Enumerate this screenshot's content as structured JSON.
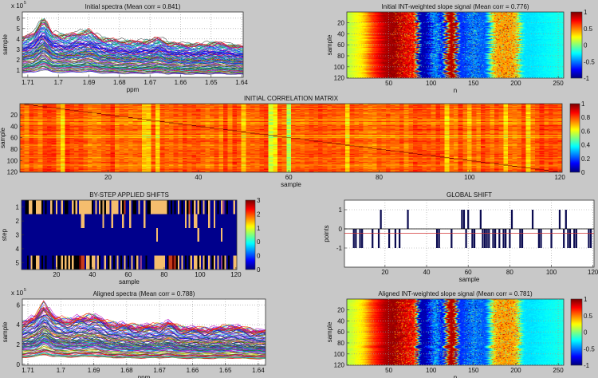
{
  "colors": {
    "figure_bg": "#c8c8c8",
    "axes_bg": "#ffffff",
    "grid": "#9a9a9a",
    "mean_line": "#d03030",
    "bar": "#0a0a50",
    "line_cycle": [
      "#0000ff",
      "#008000",
      "#ff0000",
      "#00bfbf",
      "#bf00bf",
      "#bfbf00",
      "#404040",
      "#7f3fbf",
      "#3f7fff"
    ]
  },
  "chart_data": [
    {
      "type": "line",
      "title": "Initial spectra (Mean corr = 0.841)",
      "xlabel": "ppm",
      "ylabel": "sample",
      "exponent_base": "x 10",
      "exponent_power": "5",
      "xlim": [
        1.7118,
        1.6395
      ],
      "ylim": [
        0.3,
        6.6
      ],
      "xticks": [
        1.71,
        1.7,
        1.69,
        1.68,
        1.67,
        1.66,
        1.65,
        1.64
      ],
      "yticks": [
        1,
        2,
        3,
        4,
        5,
        6
      ],
      "n_series": 120,
      "level_range": [
        0.8,
        5.0
      ],
      "base_profile": {
        "ppm": [
          1.7118,
          1.708,
          1.705,
          1.702,
          1.698,
          1.694,
          1.69,
          1.686,
          1.68,
          1.676,
          1.67,
          1.667,
          1.664,
          1.655,
          1.648,
          1.64
        ],
        "rel": [
          0.85,
          0.95,
          1.25,
          0.95,
          0.9,
          0.95,
          1.0,
          0.85,
          0.8,
          0.78,
          0.8,
          0.86,
          0.75,
          0.72,
          0.76,
          0.68
        ]
      }
    },
    {
      "type": "heatmap",
      "title": "Initial INT-weighted slope signal (Mean corr = 0.776)",
      "xlabel": "n",
      "ylabel": "sample",
      "xlim": [
        0.5,
        256.5
      ],
      "ylim": [
        120.5,
        0.5
      ],
      "xticks": [
        50,
        100,
        150,
        200,
        250
      ],
      "yticks": [
        20,
        40,
        60,
        80,
        100,
        120
      ],
      "colorbar": {
        "range": [
          -1,
          1
        ],
        "ticks": [
          1,
          0.5,
          0,
          -0.5,
          -1
        ]
      },
      "profile": {
        "n": [
          1,
          20,
          30,
          45,
          55,
          70,
          82,
          86,
          95,
          105,
          115,
          120,
          128,
          132,
          150,
          165,
          175,
          190,
          200,
          208,
          220,
          256
        ],
        "value": [
          0.1,
          0.3,
          0.6,
          0.9,
          0.95,
          0.8,
          0.7,
          -0.9,
          -0.9,
          -0.4,
          -0.8,
          0.9,
          0.9,
          -0.7,
          -0.5,
          -0.6,
          0.4,
          0.45,
          0.4,
          -0.3,
          -0.3,
          -0.2
        ]
      },
      "noisy_ranges": [
        [
          55,
          82
        ],
        [
          95,
          112
        ],
        [
          140,
          160
        ],
        [
          172,
          205
        ]
      ]
    },
    {
      "type": "heatmap",
      "title": "INITIAL CORRELATION MATRIX",
      "xlabel": "sample",
      "ylabel": "sample",
      "xlim": [
        0.5,
        120.5
      ],
      "ylim": [
        120.5,
        0.5
      ],
      "xticks": [
        20,
        40,
        60,
        80,
        100,
        120
      ],
      "yticks": [
        20,
        40,
        60,
        80,
        100,
        120
      ],
      "colorbar": {
        "range": [
          0,
          1
        ],
        "ticks": [
          1,
          0.8,
          0.6,
          0.4,
          0.2,
          0
        ]
      },
      "typical_corr": 0.8,
      "low_columns": {
        "sample": [
          10,
          28,
          29,
          31,
          50,
          56,
          57,
          60,
          73,
          95,
          100,
          108,
          113
        ],
        "corr": [
          0.6,
          0.62,
          0.6,
          0.6,
          0.62,
          0.45,
          0.55,
          0.4,
          0.6,
          0.6,
          0.65,
          0.6,
          0.6
        ]
      },
      "low_rows": {
        "sample": [
          33,
          34,
          35,
          36,
          37
        ],
        "corr": [
          0.65,
          0.65,
          0.65,
          0.65,
          0.65
        ]
      }
    },
    {
      "type": "heatmap",
      "title": "BY-STEP APPLIED SHIFTS",
      "xlabel": "sample",
      "ylabel": "step",
      "xlim": [
        0.5,
        120.5
      ],
      "ylim": [
        5.5,
        0.5
      ],
      "xticks": [
        20,
        40,
        60,
        80,
        100,
        120
      ],
      "yticks": [
        1,
        2,
        3,
        4,
        5
      ],
      "colorbar": {
        "range": [
          0,
          3
        ],
        "tick_labels": [
          "3",
          "2",
          "1",
          "0",
          "0",
          "0"
        ]
      },
      "cell_colors": {
        "0": "#00008c",
        "1": "#f5bd6e",
        "2": "#c83a1a",
        "3": "#5a0000",
        "4": "#8a3a8a",
        "5": "#000000"
      },
      "steps": [
        {
          "step": 1,
          "value1": [
            5,
            6,
            9,
            10,
            11,
            17,
            20,
            23,
            29,
            31,
            33,
            34,
            35,
            36,
            37,
            38,
            39,
            42,
            44,
            46,
            48,
            49,
            51,
            52,
            53,
            54,
            56,
            61,
            66,
            69,
            73,
            74,
            75,
            76,
            77,
            78,
            79,
            80,
            81,
            88,
            92,
            97,
            99,
            102,
            105,
            108,
            112,
            119
          ],
          "value2": [
            58,
            94
          ],
          "value4": [
            113
          ],
          "value5": [
            3,
            4,
            7,
            8,
            12,
            14,
            18,
            25,
            26,
            30,
            40,
            45,
            47,
            57,
            63,
            64,
            71,
            72,
            82,
            84,
            86,
            90,
            93,
            96,
            100,
            104,
            110,
            115
          ]
        },
        {
          "step": 2,
          "value1": [
            34,
            35,
            46,
            51,
            57,
            61,
            69,
            92,
            94,
            97,
            98,
            105,
            108
          ],
          "value2": [],
          "value4": [],
          "value5": []
        },
        {
          "step": 3,
          "value1": [
            76,
            99,
            112
          ],
          "value2": [],
          "value4": [],
          "value5": []
        },
        {
          "step": 4,
          "value1": [],
          "value2": [],
          "value4": [],
          "value5": []
        },
        {
          "step": 5,
          "value1": [
            6,
            9,
            10,
            20,
            23,
            25,
            27,
            29,
            37,
            38,
            40,
            41,
            43,
            47,
            50,
            54,
            58,
            62,
            65,
            75,
            76,
            77,
            78,
            79,
            80,
            88,
            90,
            95,
            97,
            98,
            100,
            102,
            105,
            108,
            110,
            114,
            119,
            120
          ],
          "value2": [
            34,
            35,
            83,
            84,
            86
          ],
          "value3": [
            33,
            85
          ],
          "value4": [
            67,
            112
          ],
          "value5": [
            4,
            7,
            8,
            12,
            14,
            18,
            21,
            22,
            24,
            26,
            28,
            30,
            31,
            32,
            39,
            44,
            49,
            52,
            56,
            60,
            64,
            70,
            82,
            87,
            92,
            94,
            99,
            103,
            107,
            113,
            116
          ]
        }
      ]
    },
    {
      "type": "bar",
      "title": "GLOBAL SHIFT",
      "xlabel": "sample",
      "ylabel": "points",
      "xlim": [
        0.5,
        120.5
      ],
      "ylim": [
        -2,
        1.5
      ],
      "xticks": [
        20,
        40,
        60,
        80,
        100,
        120
      ],
      "yticks": [
        1,
        0,
        -1
      ],
      "minus_one_samples": [
        5,
        6,
        8,
        9,
        14,
        17,
        22,
        25,
        27,
        45,
        46,
        52,
        59,
        62,
        63,
        67,
        68,
        69,
        70,
        72,
        73,
        75,
        77,
        78,
        80,
        85,
        86,
        94,
        95,
        100,
        106,
        108,
        109,
        111,
        112,
        118,
        119
      ],
      "plus_one_samples": [
        18,
        31,
        57,
        58,
        60,
        66,
        81,
        91,
        104,
        107
      ]
    },
    {
      "type": "line",
      "title": "Aligned spectra (Mean corr = 0.788)",
      "xlabel": "ppm",
      "ylabel": "sample",
      "exponent_base": "x 10",
      "exponent_power": "5",
      "xlim": [
        1.7117,
        1.6378
      ],
      "ylim": [
        -0.1,
        6.6
      ],
      "xticks": [
        1.71,
        1.7,
        1.69,
        1.68,
        1.67,
        1.66,
        1.65,
        1.64
      ],
      "yticks": [
        0,
        2,
        4,
        6
      ],
      "n_series": 120,
      "level_range": [
        0.8,
        5.0
      ],
      "base_profile": {
        "ppm": [
          1.7117,
          1.708,
          1.705,
          1.702,
          1.698,
          1.694,
          1.69,
          1.686,
          1.68,
          1.676,
          1.67,
          1.667,
          1.664,
          1.655,
          1.648,
          1.64
        ],
        "rel": [
          0.85,
          0.95,
          1.25,
          0.95,
          0.9,
          0.95,
          1.0,
          0.85,
          0.8,
          0.78,
          0.8,
          0.86,
          0.75,
          0.72,
          0.78,
          0.68
        ]
      }
    },
    {
      "type": "heatmap",
      "title": "Aligned INT-weighted slope signal (Mean corr = 0.781)",
      "xlabel": "n",
      "ylabel": "sample",
      "xlim": [
        0.5,
        256.5
      ],
      "ylim": [
        120.5,
        0.5
      ],
      "xticks": [
        50,
        100,
        150,
        200,
        250
      ],
      "yticks": [
        20,
        40,
        60,
        80,
        100,
        120
      ],
      "colorbar": {
        "range": [
          -1,
          1
        ],
        "ticks": [
          1,
          0.5,
          0,
          -0.5,
          -1
        ]
      },
      "profile": {
        "n": [
          1,
          20,
          30,
          45,
          55,
          70,
          82,
          86,
          95,
          105,
          115,
          120,
          128,
          132,
          150,
          165,
          175,
          190,
          200,
          208,
          220,
          256
        ],
        "value": [
          0.1,
          0.3,
          0.6,
          0.9,
          0.95,
          0.8,
          0.7,
          -0.9,
          -0.9,
          -0.4,
          -0.8,
          0.9,
          0.9,
          -0.7,
          -0.5,
          -0.6,
          0.4,
          0.45,
          0.4,
          -0.3,
          -0.3,
          -0.2
        ]
      },
      "noisy_ranges": [
        [
          55,
          82
        ],
        [
          95,
          112
        ],
        [
          140,
          160
        ],
        [
          172,
          205
        ]
      ]
    }
  ]
}
